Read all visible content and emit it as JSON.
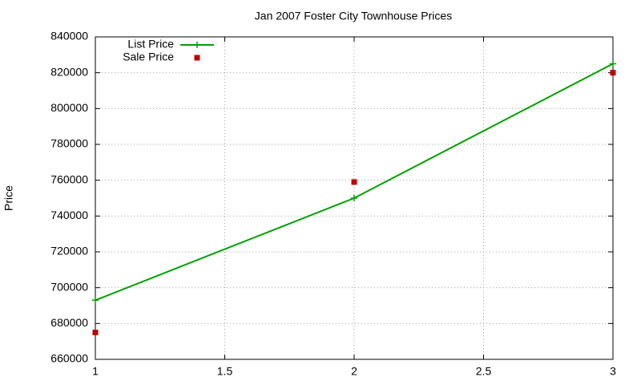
{
  "chart_data": {
    "type": "line",
    "title": "Jan 2007 Foster City Townhouse Prices",
    "y_label": "Price",
    "x": [
      1,
      2,
      3
    ],
    "series": [
      {
        "name": "List Price",
        "color": "#00a000",
        "marker": "plus",
        "line": true,
        "values": [
          693000,
          750000,
          825000
        ]
      },
      {
        "name": "Sale Price",
        "color": "#c00000",
        "marker": "square",
        "line": false,
        "values": [
          675000,
          759000,
          820000
        ]
      }
    ],
    "xlim": [
      1,
      3
    ],
    "xticks": [
      1,
      1.5,
      2,
      2.5,
      3
    ],
    "ylim": [
      660000,
      840000
    ],
    "yticks": [
      660000,
      680000,
      700000,
      720000,
      740000,
      760000,
      780000,
      800000,
      820000,
      840000
    ],
    "grid": true,
    "legend": "top-left"
  }
}
